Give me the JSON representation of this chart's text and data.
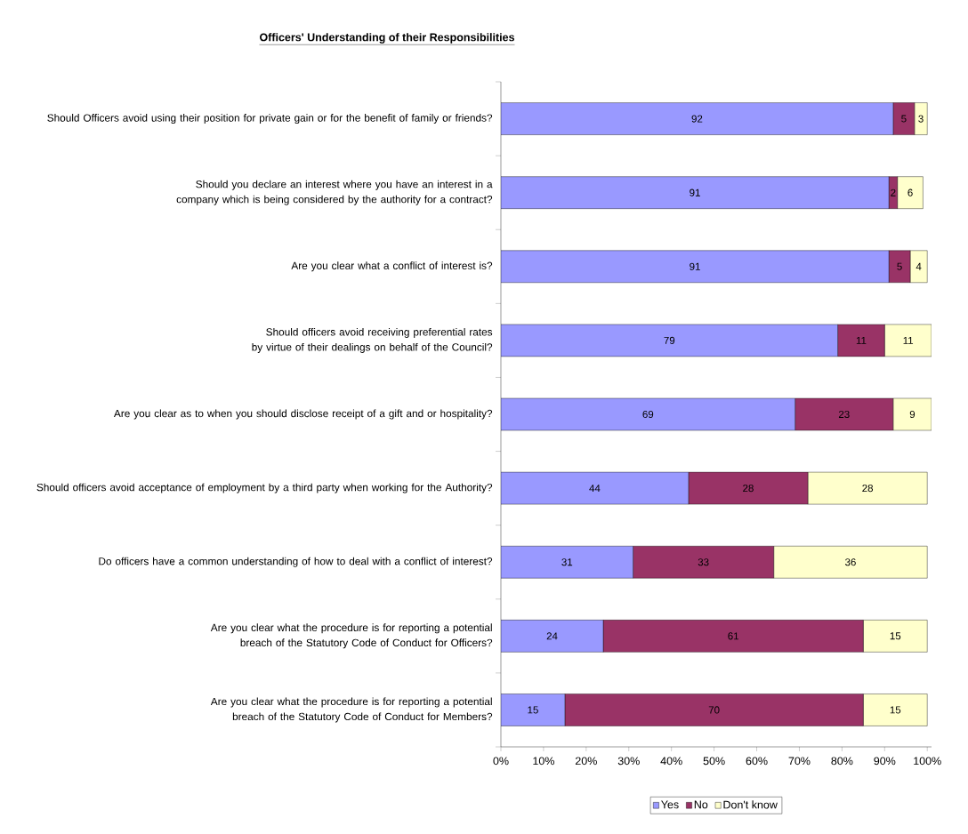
{
  "chart_data": {
    "type": "bar",
    "orientation": "horizontal",
    "stacked": true,
    "title": "Officers' Understanding of their Responsibilities",
    "categories": [
      "Should Officers avoid using their position for private gain or for the benefit of family or friends?",
      "Should you declare an interest where you have an interest in a company which is being considered by the authority for a contract?",
      "Are you clear what a conflict of interest is?",
      "Should officers avoid receiving preferential rates by virtue of their dealings on behalf of the Council?",
      "Are you clear as to when you should disclose receipt of a gift and or hospitality?",
      "Should officers avoid acceptance of employment by a third party when working for the Authority?",
      "Do officers have a common understanding of how to deal with a conflict of interest?",
      "Are you clear what the procedure is for reporting a potential breach of the Statutory Code of Conduct for Officers?",
      "Are you clear what the procedure is for reporting a potential breach of the Statutory Code of Conduct for Members?"
    ],
    "series": [
      {
        "name": "Yes",
        "color": "#9999ff",
        "values": [
          92,
          91,
          91,
          79,
          69,
          44,
          31,
          24,
          15
        ]
      },
      {
        "name": "No",
        "color": "#993366",
        "values": [
          5,
          2,
          5,
          11,
          23,
          28,
          33,
          61,
          70
        ]
      },
      {
        "name": "Don't know",
        "color": "#ffffcc",
        "values": [
          3,
          6,
          4,
          11,
          9,
          28,
          36,
          15,
          15
        ]
      }
    ],
    "xlim": [
      0,
      101
    ],
    "xticks": [
      {
        "value": 0,
        "label": "0%"
      },
      {
        "value": 10,
        "label": "10%"
      },
      {
        "value": 20,
        "label": "20%"
      },
      {
        "value": 30,
        "label": "30%"
      },
      {
        "value": 40,
        "label": "40%"
      },
      {
        "value": 50,
        "label": "50%"
      },
      {
        "value": 60,
        "label": "60%"
      },
      {
        "value": 70,
        "label": "70%"
      },
      {
        "value": 80,
        "label": "80%"
      },
      {
        "value": 90,
        "label": "90%"
      },
      {
        "value": 100,
        "label": "100%"
      }
    ],
    "data_labels": true,
    "legend": "bottom",
    "grid": false
  }
}
